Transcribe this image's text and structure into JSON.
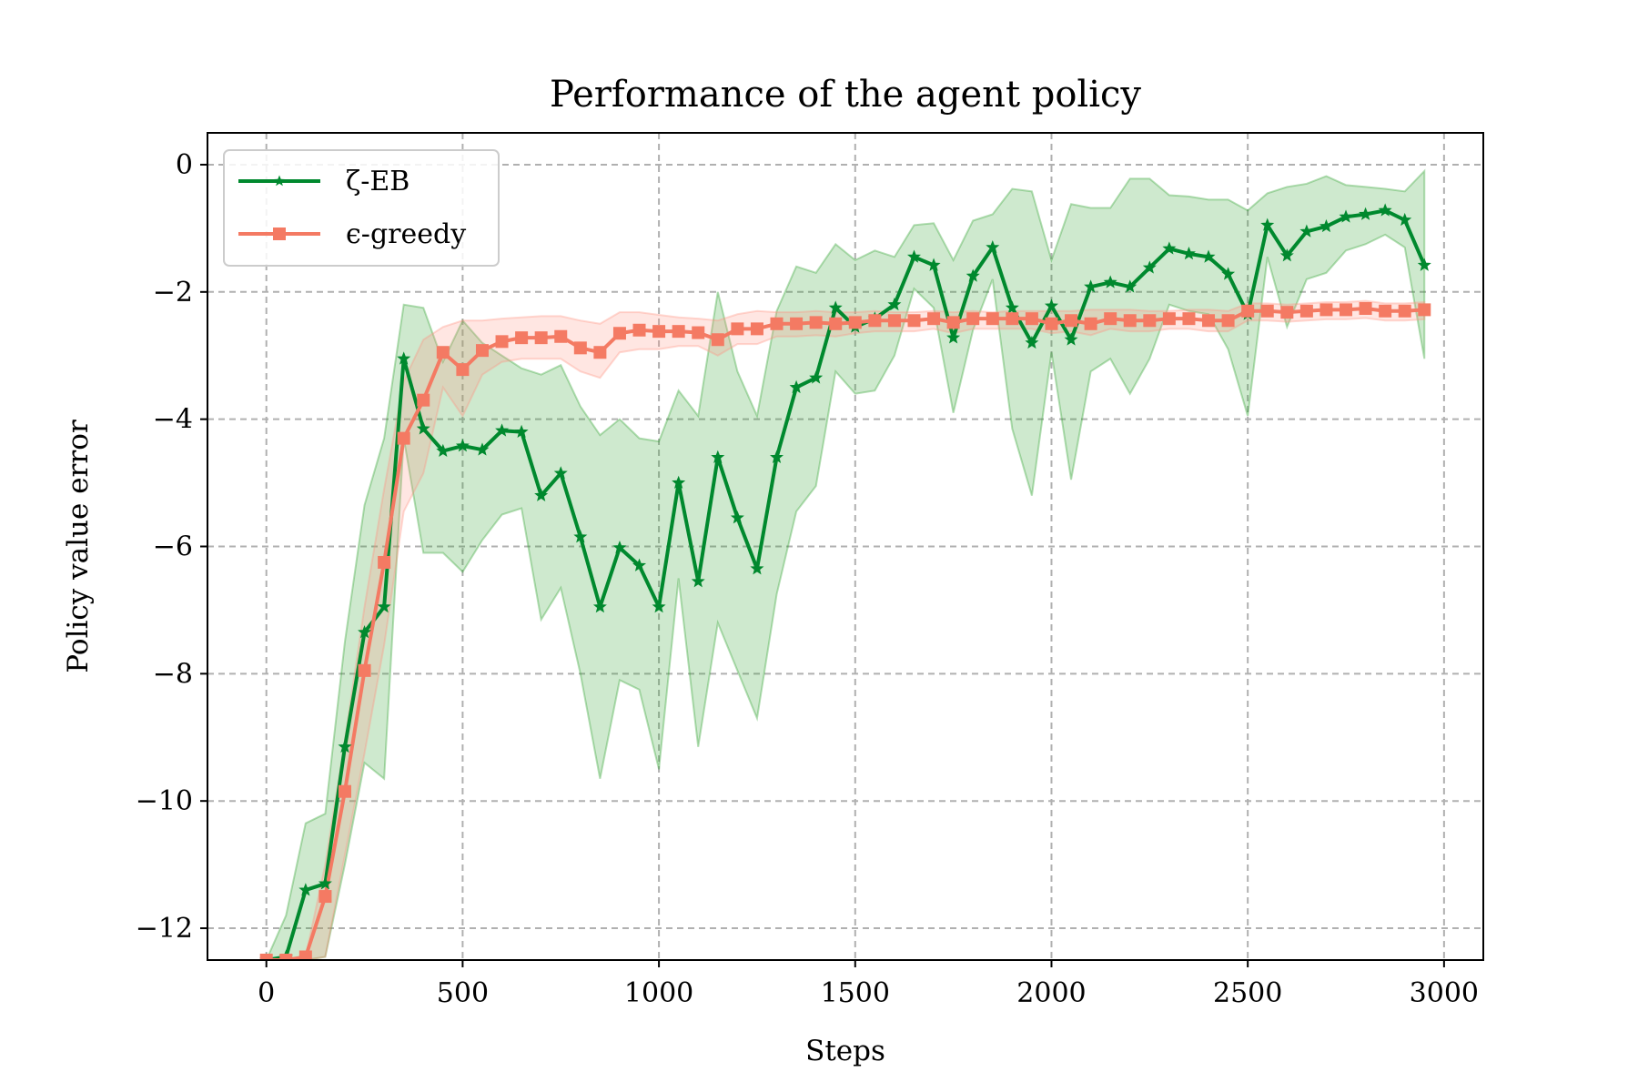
{
  "chart_data": {
    "type": "line",
    "title": "Performance of the agent policy",
    "xlabel": "Steps",
    "ylabel": "Policy value error",
    "xlim": [
      -150,
      3100
    ],
    "ylim": [
      -12.5,
      0.5
    ],
    "xticks": [
      0,
      500,
      1000,
      1500,
      2000,
      2500,
      3000
    ],
    "xtick_labels": [
      "0",
      "500",
      "1000",
      "1500",
      "2000",
      "2500",
      "3000"
    ],
    "yticks": [
      0,
      -2,
      -4,
      -6,
      -8,
      -10,
      -12
    ],
    "ytick_labels": [
      "0",
      "−2",
      "−4",
      "−6",
      "−8",
      "−10",
      "−12"
    ],
    "grid": true,
    "legend_position": "top-left",
    "x": [
      0,
      50,
      100,
      150,
      200,
      250,
      300,
      350,
      400,
      450,
      500,
      550,
      600,
      650,
      700,
      750,
      800,
      850,
      900,
      950,
      1000,
      1050,
      1100,
      1150,
      1200,
      1250,
      1300,
      1350,
      1400,
      1450,
      1500,
      1550,
      1600,
      1650,
      1700,
      1750,
      1800,
      1850,
      1900,
      1950,
      2000,
      2050,
      2100,
      2150,
      2200,
      2250,
      2300,
      2350,
      2400,
      2450,
      2500,
      2550,
      2600,
      2650,
      2700,
      2750,
      2800,
      2850,
      2900,
      2950
    ],
    "series": [
      {
        "name": "ζ-EB",
        "color": "#00892e",
        "fill_color": "#2ca02c",
        "marker": "star",
        "values": [
          -12.5,
          -12.45,
          -11.4,
          -11.3,
          -9.15,
          -7.35,
          -6.95,
          -3.05,
          -4.15,
          -4.5,
          -4.42,
          -4.48,
          -4.18,
          -4.2,
          -5.2,
          -4.85,
          -5.85,
          -6.95,
          -6.02,
          -6.3,
          -6.95,
          -5.0,
          -6.55,
          -4.6,
          -5.55,
          -6.35,
          -4.6,
          -3.5,
          -3.35,
          -2.25,
          -2.55,
          -2.42,
          -2.2,
          -1.45,
          -1.58,
          -2.72,
          -1.75,
          -1.3,
          -2.25,
          -2.8,
          -2.22,
          -2.75,
          -1.92,
          -1.85,
          -1.92,
          -1.62,
          -1.32,
          -1.4,
          -1.45,
          -1.72,
          -2.35,
          -0.95,
          -1.43,
          -1.05,
          -0.97,
          -0.82,
          -0.78,
          -0.72,
          -0.87,
          -1.58
        ],
        "upper": [
          -12.5,
          -11.8,
          -10.35,
          -10.2,
          -7.5,
          -5.35,
          -4.3,
          -2.2,
          -2.25,
          -3.1,
          -2.45,
          -2.8,
          -3.0,
          -3.2,
          -3.3,
          -3.15,
          -3.8,
          -4.25,
          -4.0,
          -4.3,
          -4.35,
          -3.55,
          -3.95,
          -2.0,
          -3.25,
          -3.95,
          -2.3,
          -1.6,
          -1.7,
          -1.25,
          -1.5,
          -1.35,
          -1.45,
          -0.95,
          -0.92,
          -1.5,
          -0.88,
          -0.78,
          -0.38,
          -0.42,
          -1.5,
          -0.62,
          -0.68,
          -0.68,
          -0.22,
          -0.22,
          -0.48,
          -0.5,
          -0.55,
          -0.55,
          -0.72,
          -0.45,
          -0.35,
          -0.3,
          -0.18,
          -0.32,
          -0.35,
          -0.38,
          -0.42,
          -0.1
        ],
        "lower": [
          -12.5,
          -12.5,
          -12.5,
          -12.45,
          -11.0,
          -9.4,
          -9.65,
          -4.3,
          -6.1,
          -6.1,
          -6.4,
          -5.9,
          -5.5,
          -5.4,
          -7.15,
          -6.65,
          -8.0,
          -9.65,
          -8.1,
          -8.25,
          -9.5,
          -6.5,
          -9.15,
          -7.2,
          -7.95,
          -8.7,
          -6.75,
          -5.45,
          -5.05,
          -3.25,
          -3.6,
          -3.55,
          -3.0,
          -1.95,
          -2.25,
          -3.9,
          -2.6,
          -1.8,
          -4.15,
          -5.2,
          -2.95,
          -4.95,
          -3.25,
          -3.05,
          -3.6,
          -3.05,
          -2.2,
          -2.3,
          -2.35,
          -2.9,
          -3.95,
          -1.45,
          -2.55,
          -1.8,
          -1.7,
          -1.35,
          -1.25,
          -1.1,
          -1.3,
          -3.05
        ]
      },
      {
        "name": "ϵ-greedy",
        "color": "#f47a63",
        "fill_color": "#ff9180",
        "marker": "square",
        "values": [
          -12.5,
          -12.5,
          -12.45,
          -11.5,
          -9.85,
          -7.95,
          -6.25,
          -4.3,
          -3.7,
          -2.95,
          -3.22,
          -2.92,
          -2.78,
          -2.72,
          -2.72,
          -2.7,
          -2.88,
          -2.95,
          -2.65,
          -2.6,
          -2.62,
          -2.62,
          -2.64,
          -2.75,
          -2.58,
          -2.58,
          -2.5,
          -2.5,
          -2.48,
          -2.5,
          -2.48,
          -2.45,
          -2.45,
          -2.45,
          -2.42,
          -2.48,
          -2.42,
          -2.42,
          -2.42,
          -2.42,
          -2.5,
          -2.45,
          -2.5,
          -2.42,
          -2.45,
          -2.45,
          -2.42,
          -2.42,
          -2.45,
          -2.45,
          -2.3,
          -2.3,
          -2.32,
          -2.3,
          -2.28,
          -2.28,
          -2.26,
          -2.3,
          -2.3,
          -2.28
        ],
        "upper": [
          -12.5,
          -12.5,
          -12.45,
          -11.0,
          -9.05,
          -6.95,
          -5.1,
          -3.4,
          -2.75,
          -2.55,
          -2.45,
          -2.45,
          -2.42,
          -2.4,
          -2.38,
          -2.38,
          -2.45,
          -2.5,
          -2.32,
          -2.32,
          -2.36,
          -2.4,
          -2.42,
          -2.45,
          -2.35,
          -2.3,
          -2.32,
          -2.32,
          -2.3,
          -2.32,
          -2.32,
          -2.3,
          -2.32,
          -2.32,
          -2.3,
          -2.32,
          -2.3,
          -2.32,
          -2.3,
          -2.3,
          -2.3,
          -2.3,
          -2.28,
          -2.28,
          -2.28,
          -2.3,
          -2.3,
          -2.28,
          -2.28,
          -2.3,
          -2.18,
          -2.18,
          -2.2,
          -2.18,
          -2.16,
          -2.16,
          -2.14,
          -2.18,
          -2.18,
          -2.16
        ],
        "lower": [
          -12.5,
          -12.5,
          -12.5,
          -12.45,
          -10.85,
          -9.25,
          -7.55,
          -5.45,
          -4.85,
          -3.5,
          -3.95,
          -3.3,
          -3.1,
          -3.05,
          -3.05,
          -3.05,
          -3.25,
          -3.35,
          -2.95,
          -2.9,
          -2.9,
          -2.85,
          -2.85,
          -3.0,
          -2.82,
          -2.82,
          -2.7,
          -2.7,
          -2.68,
          -2.7,
          -2.65,
          -2.62,
          -2.62,
          -2.62,
          -2.58,
          -2.65,
          -2.58,
          -2.58,
          -2.58,
          -2.58,
          -2.65,
          -2.62,
          -2.68,
          -2.58,
          -2.62,
          -2.62,
          -2.58,
          -2.58,
          -2.62,
          -2.62,
          -2.45,
          -2.45,
          -2.47,
          -2.45,
          -2.43,
          -2.43,
          -2.41,
          -2.45,
          -2.45,
          -2.43
        ]
      }
    ]
  }
}
